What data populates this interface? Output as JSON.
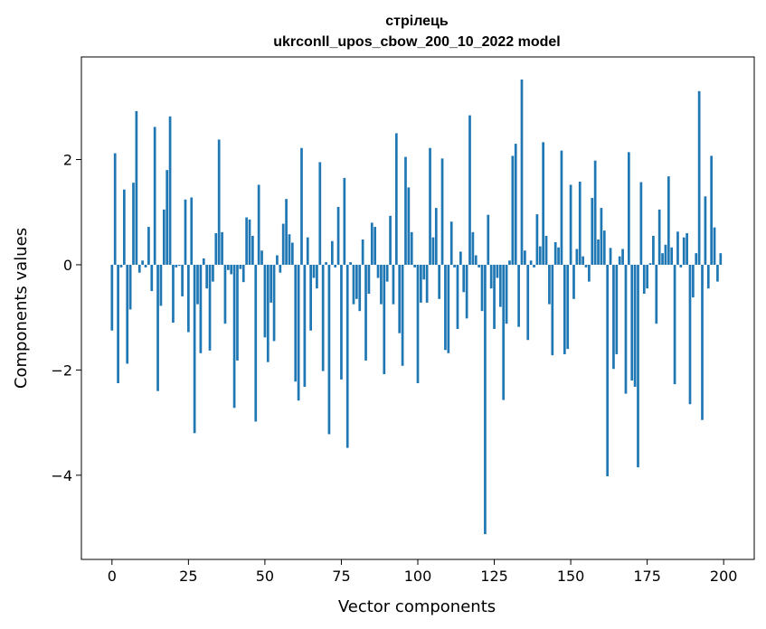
{
  "chart_data": {
    "type": "bar",
    "title": "стрілець",
    "subtitle": "ukrconll_upos_cbow_200_10_2022 model",
    "xlabel": "Vector components",
    "ylabel": "Components values",
    "xlim": [
      -10,
      210
    ],
    "ylim": [
      -5.6,
      3.95
    ],
    "xticks": [
      0,
      25,
      50,
      75,
      100,
      125,
      150,
      175,
      200
    ],
    "yticks": [
      -4,
      -2,
      0,
      2
    ],
    "ytick_labels": [
      "−4",
      "−2",
      "0",
      "2"
    ],
    "grid": false,
    "bar_color": "#1f77b4",
    "values": [
      -1.25,
      2.12,
      -2.25,
      -0.05,
      1.43,
      -1.88,
      -0.85,
      1.56,
      2.92,
      -0.15,
      0.08,
      -0.05,
      0.72,
      -0.5,
      2.62,
      -2.4,
      -0.78,
      1.05,
      1.8,
      2.82,
      -1.1,
      -0.05,
      -0.02,
      -0.6,
      1.24,
      -1.28,
      1.28,
      -3.2,
      -0.75,
      -1.68,
      0.12,
      -0.45,
      -1.63,
      -0.32,
      0.6,
      2.38,
      0.62,
      -1.12,
      -0.1,
      -0.18,
      -2.72,
      -1.82,
      -0.08,
      -0.33,
      0.9,
      0.86,
      0.55,
      -2.98,
      1.52,
      0.27,
      -1.38,
      -1.85,
      -0.72,
      -1.45,
      0.18,
      -0.15,
      0.78,
      1.25,
      0.58,
      0.42,
      -2.22,
      -2.58,
      2.22,
      -2.32,
      0.52,
      -1.25,
      -0.25,
      -0.45,
      1.95,
      -2.02,
      0.05,
      -3.22,
      0.45,
      -0.05,
      1.1,
      -2.18,
      1.65,
      -3.48,
      0.05,
      -0.75,
      -0.65,
      -0.88,
      0.48,
      -1.82,
      -0.55,
      0.8,
      0.72,
      -0.25,
      -0.75,
      -2.08,
      -0.32,
      0.93,
      -0.75,
      2.5,
      -1.3,
      -1.92,
      2.05,
      1.47,
      0.62,
      -0.05,
      -2.25,
      -0.72,
      -0.28,
      -0.72,
      2.22,
      0.52,
      1.08,
      -0.65,
      2.02,
      -1.62,
      -1.68,
      0.82,
      -0.05,
      -1.22,
      0.25,
      -0.52,
      -1.02,
      2.84,
      0.62,
      0.18,
      -0.05,
      -0.88,
      -5.12,
      0.95,
      -0.45,
      -1.22,
      -0.25,
      -0.8,
      -2.57,
      -1.12,
      0.08,
      2.07,
      2.3,
      -1.18,
      3.52,
      0.27,
      -1.43,
      0.08,
      -0.05,
      0.96,
      0.35,
      2.33,
      0.55,
      -0.75,
      -1.72,
      0.43,
      0.33,
      2.17,
      -1.7,
      -1.6,
      1.52,
      -0.65,
      0.3,
      1.58,
      0.16,
      -0.05,
      -0.32,
      1.27,
      1.98,
      0.48,
      1.08,
      0.65,
      -4.02,
      0.32,
      -1.98,
      -1.7,
      0.16,
      0.3,
      -2.45,
      2.14,
      -2.2,
      -2.32,
      -3.85,
      1.57,
      -0.55,
      -0.45,
      0.03,
      0.55,
      -1.12,
      1.05,
      0.22,
      0.38,
      1.68,
      0.33,
      -2.27,
      0.63,
      -0.05,
      0.52,
      0.6,
      -2.65,
      -0.62,
      0.22,
      3.3,
      -2.95,
      1.3,
      -0.45,
      2.07,
      0.71,
      -0.32,
      0.22
    ]
  }
}
